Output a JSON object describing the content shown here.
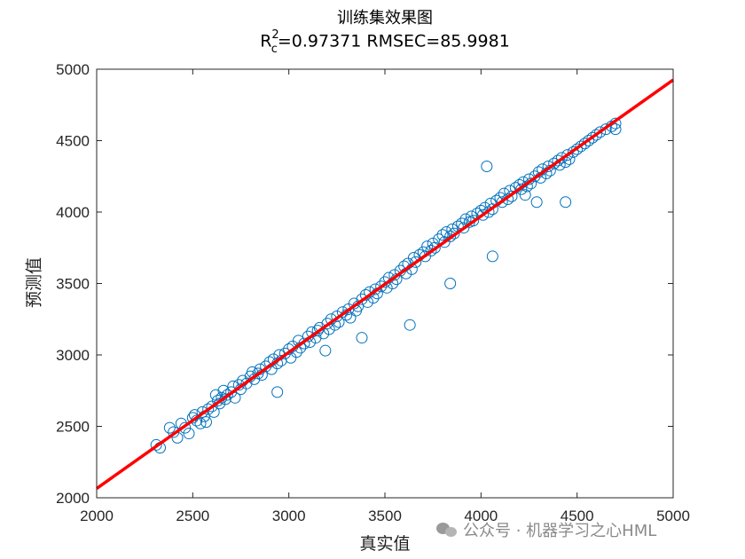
{
  "chart_data": {
    "type": "scatter",
    "title": "训练集效果图",
    "subtitle": {
      "prefix": "R",
      "sup": "2",
      "sub": "c",
      "rest": "=0.97371  RMSEC=85.9981"
    },
    "xlabel": "真实值",
    "ylabel": "预测值",
    "xlim": [
      2000,
      5000
    ],
    "ylim": [
      2000,
      5000
    ],
    "xticks": [
      "2000",
      "2500",
      "3000",
      "3500",
      "4000",
      "4500",
      "5000"
    ],
    "yticks": [
      "2000",
      "2500",
      "3000",
      "3500",
      "4000",
      "4500",
      "5000"
    ],
    "grid": false,
    "legend": "none",
    "series": [
      {
        "marker": "circle",
        "color": "#0072BD",
        "x": [
          2310,
          2330,
          2380,
          2400,
          2420,
          2440,
          2460,
          2480,
          2500,
          2510,
          2520,
          2540,
          2550,
          2560,
          2570,
          2580,
          2600,
          2610,
          2620,
          2630,
          2640,
          2650,
          2660,
          2670,
          2680,
          2700,
          2710,
          2720,
          2740,
          2750,
          2760,
          2780,
          2800,
          2810,
          2820,
          2840,
          2850,
          2860,
          2880,
          2900,
          2910,
          2920,
          2940,
          2950,
          2960,
          2980,
          3000,
          3010,
          3020,
          3040,
          3050,
          3060,
          3080,
          3100,
          3110,
          3120,
          3140,
          3150,
          3160,
          3180,
          3200,
          3210,
          3220,
          3240,
          3250,
          3260,
          3280,
          3300,
          3310,
          3320,
          3340,
          3350,
          3360,
          3380,
          3400,
          3410,
          3420,
          3440,
          3450,
          3460,
          3480,
          3500,
          3510,
          3520,
          3540,
          3550,
          3560,
          3580,
          3600,
          3610,
          3620,
          3640,
          3650,
          3660,
          3680,
          3700,
          3710,
          3720,
          3740,
          3750,
          3760,
          3780,
          3800,
          3810,
          3820,
          3840,
          3850,
          3860,
          3880,
          3900,
          3910,
          3920,
          3940,
          3950,
          3960,
          3980,
          4000,
          4010,
          4020,
          4040,
          4050,
          4060,
          4080,
          4100,
          4110,
          4120,
          4140,
          4150,
          4160,
          4180,
          4200,
          4210,
          4220,
          4240,
          4250,
          4260,
          4280,
          4300,
          4310,
          4320,
          4340,
          4350,
          4360,
          4380,
          4400,
          4410,
          4420,
          4440,
          4450,
          4460,
          4480,
          4500,
          4520,
          4540,
          4560,
          4580,
          4600,
          4620,
          4650,
          4680,
          4700,
          4700,
          3630,
          2940,
          3380,
          4030,
          4440,
          4230,
          4060,
          4290,
          3840,
          3190
        ],
        "y": [
          2370,
          2350,
          2490,
          2460,
          2420,
          2520,
          2490,
          2450,
          2560,
          2580,
          2540,
          2520,
          2600,
          2570,
          2530,
          2620,
          2640,
          2600,
          2720,
          2680,
          2660,
          2700,
          2750,
          2690,
          2720,
          2740,
          2780,
          2700,
          2790,
          2760,
          2820,
          2800,
          2850,
          2880,
          2830,
          2870,
          2900,
          2860,
          2920,
          2950,
          2900,
          2970,
          2940,
          3000,
          2960,
          3010,
          3040,
          2980,
          3060,
          3020,
          3100,
          3050,
          3080,
          3130,
          3090,
          3160,
          3120,
          3170,
          3190,
          3150,
          3220,
          3180,
          3250,
          3210,
          3270,
          3230,
          3300,
          3280,
          3320,
          3260,
          3360,
          3310,
          3340,
          3390,
          3420,
          3370,
          3440,
          3400,
          3460,
          3430,
          3480,
          3510,
          3470,
          3540,
          3500,
          3560,
          3530,
          3590,
          3620,
          3570,
          3640,
          3600,
          3680,
          3650,
          3700,
          3720,
          3690,
          3760,
          3730,
          3780,
          3750,
          3810,
          3840,
          3790,
          3860,
          3830,
          3880,
          3850,
          3900,
          3920,
          3890,
          3950,
          3930,
          3970,
          3940,
          3990,
          4010,
          3980,
          4030,
          4000,
          4060,
          4020,
          4080,
          4100,
          4070,
          4130,
          4090,
          4150,
          4110,
          4170,
          4190,
          4160,
          4210,
          4180,
          4230,
          4200,
          4250,
          4280,
          4240,
          4300,
          4270,
          4320,
          4290,
          4340,
          4360,
          4330,
          4380,
          4350,
          4400,
          4370,
          4420,
          4440,
          4460,
          4480,
          4500,
          4520,
          4540,
          4560,
          4580,
          4600,
          4620,
          4580,
          3210,
          2740,
          3120,
          4320,
          4070,
          4120,
          3690,
          4070,
          3500,
          3030
        ]
      },
      {
        "type": "line",
        "color": "#FF0000",
        "x": [
          2000,
          5000
        ],
        "y": [
          2065,
          4925
        ]
      }
    ]
  },
  "watermark": {
    "text": "公众号 · 机器学习之心HML"
  }
}
